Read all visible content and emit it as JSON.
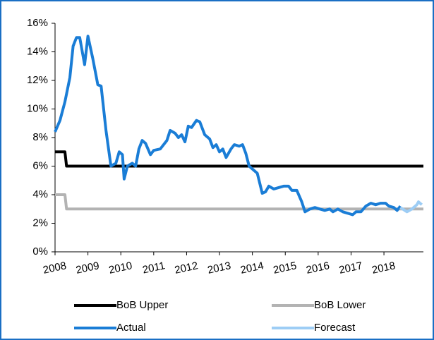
{
  "chart_data": {
    "type": "line",
    "xlim": [
      2008,
      2019.2
    ],
    "xticks": [
      2008,
      2009,
      2010,
      2011,
      2012,
      2013,
      2014,
      2015,
      2016,
      2017,
      2018
    ],
    "ylim": [
      0,
      16
    ],
    "yticks": [
      {
        "value": 0,
        "label": "0%"
      },
      {
        "value": 2,
        "label": "2%"
      },
      {
        "value": 4,
        "label": "4%"
      },
      {
        "value": 6,
        "label": "6%"
      },
      {
        "value": 8,
        "label": "8%"
      },
      {
        "value": 10,
        "label": "10%"
      },
      {
        "value": 12,
        "label": "12%"
      },
      {
        "value": 14,
        "label": "14%"
      },
      {
        "value": 16,
        "label": "16%"
      }
    ],
    "series": [
      {
        "name": "BoB Upper",
        "color": "#000000",
        "x": [
          2008,
          2008.3,
          2008.35,
          2019.2
        ],
        "values": [
          7,
          7,
          6,
          6
        ]
      },
      {
        "name": "BoB Lower",
        "color": "#b3b3b3",
        "x": [
          2008,
          2008.3,
          2008.35,
          2019.2
        ],
        "values": [
          4,
          4,
          3,
          3
        ]
      },
      {
        "name": "Actual",
        "color": "#1a7dd6",
        "x": [
          2008.0,
          2008.15,
          2008.3,
          2008.45,
          2008.55,
          2008.65,
          2008.75,
          2008.9,
          2009.0,
          2009.15,
          2009.3,
          2009.4,
          2009.55,
          2009.7,
          2009.85,
          2009.95,
          2010.05,
          2010.1,
          2010.2,
          2010.35,
          2010.45,
          2010.55,
          2010.65,
          2010.75,
          2010.9,
          2011.0,
          2011.2,
          2011.4,
          2011.5,
          2011.65,
          2011.75,
          2011.85,
          2011.95,
          2012.05,
          2012.15,
          2012.3,
          2012.4,
          2012.55,
          2012.7,
          2012.8,
          2012.9,
          2013.0,
          2013.1,
          2013.2,
          2013.35,
          2013.45,
          2013.6,
          2013.7,
          2013.8,
          2013.9,
          2014.05,
          2014.15,
          2014.3,
          2014.4,
          2014.5,
          2014.65,
          2014.8,
          2014.95,
          2015.1,
          2015.2,
          2015.35,
          2015.5,
          2015.6,
          2015.75,
          2015.9,
          2016.05,
          2016.2,
          2016.35,
          2016.45,
          2016.6,
          2016.75,
          2016.9,
          2017.05,
          2017.15,
          2017.3,
          2017.45,
          2017.6,
          2017.75,
          2017.9,
          2018.05,
          2018.15,
          2018.3,
          2018.4,
          2018.5
        ],
        "values": [
          8.4,
          9.2,
          10.5,
          12.2,
          14.4,
          15,
          15,
          13.1,
          15.1,
          13.5,
          11.7,
          11.6,
          8.5,
          6,
          6.2,
          7,
          6.8,
          5.1,
          6,
          6.2,
          6,
          7.2,
          7.8,
          7.6,
          6.8,
          7.1,
          7.2,
          7.8,
          8.5,
          8.3,
          8,
          8.2,
          7.7,
          8.8,
          8.7,
          9.2,
          9.1,
          8.2,
          7.9,
          7.3,
          7.5,
          7,
          7.2,
          6.6,
          7.2,
          7.5,
          7.4,
          7.5,
          6.9,
          6,
          5.7,
          5.5,
          4.1,
          4.2,
          4.6,
          4.4,
          4.5,
          4.6,
          4.6,
          4.3,
          4.3,
          3.5,
          2.8,
          3.0,
          3.1,
          3.0,
          2.9,
          3.0,
          2.8,
          3.0,
          2.8,
          2.7,
          2.6,
          2.8,
          2.8,
          3.2,
          3.4,
          3.3,
          3.4,
          3.4,
          3.2,
          3.1,
          2.9,
          3.2
        ]
      },
      {
        "name": "Forecast",
        "color": "#9dcdf5",
        "x": [
          2018.5,
          2018.7,
          2018.85,
          2019.0,
          2019.05,
          2019.15
        ],
        "values": [
          3.1,
          2.8,
          3.0,
          3.3,
          3.5,
          3.3
        ]
      }
    ]
  }
}
